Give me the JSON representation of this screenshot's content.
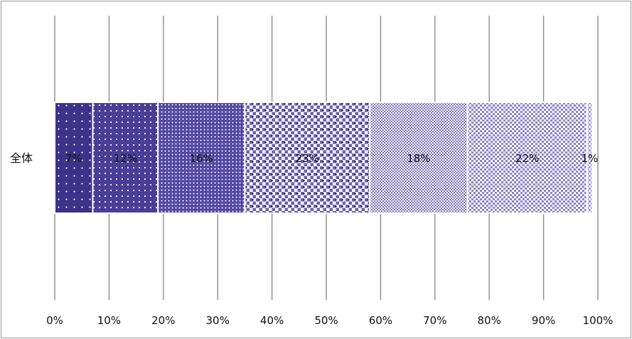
{
  "chart_data": {
    "type": "bar",
    "orientation": "horizontal",
    "stacked": true,
    "categories": [
      "全体"
    ],
    "series": [
      {
        "values": [
          7
        ],
        "label": "7%",
        "color": "#3d3288",
        "pattern": "sparse-dots"
      },
      {
        "values": [
          12
        ],
        "label": "12%",
        "color": "#4a3d97",
        "pattern": "dots"
      },
      {
        "values": [
          16
        ],
        "label": "16%",
        "color": "#5548a3",
        "pattern": "dense-dots"
      },
      {
        "values": [
          23
        ],
        "label": "23%",
        "color": "#6b5fb6",
        "pattern": "light-dots"
      },
      {
        "values": [
          18
        ],
        "label": "18%",
        "color": "#7a70c0",
        "pattern": "checker"
      },
      {
        "values": [
          22
        ],
        "label": "22%",
        "color": "#8c84cc",
        "pattern": "light-checker"
      },
      {
        "values": [
          1
        ],
        "label": "1%",
        "color": "#9e97d6",
        "pattern": "sparse-checker"
      }
    ],
    "xlim": [
      0,
      100
    ],
    "xticks": [
      0,
      10,
      20,
      30,
      40,
      50,
      60,
      70,
      80,
      90,
      100
    ],
    "xtick_labels": [
      "0%",
      "10%",
      "20%",
      "30%",
      "40%",
      "50%",
      "60%",
      "70%",
      "80%",
      "90%",
      "100%"
    ],
    "grid": "vertical",
    "legend": "none"
  }
}
